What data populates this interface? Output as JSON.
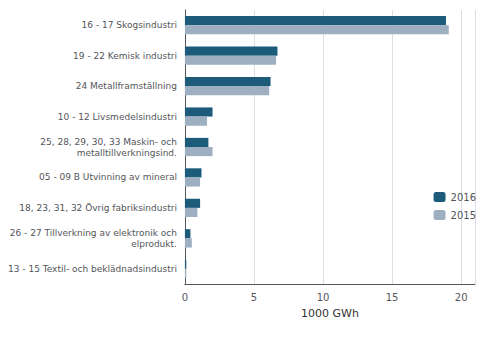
{
  "chart_data": {
    "type": "bar",
    "orientation": "horizontal",
    "categories": [
      "13 - 15 Textil- och beklädnadsindustri",
      "26 - 27 Tillverkning av elektronik och\nelprodukt.",
      "18, 23, 31, 32 Övrig fabriksindustri",
      "05 - 09 B Utvinning av mineral",
      "25, 28, 29, 30, 33 Maskin- och\nmetalltillverkningsind.",
      "10 - 12 Livsmedelsindustri",
      "24 Metallframställning",
      "19 - 22 Kemisk industri",
      "16 - 17 Skogsindustri"
    ],
    "series": [
      {
        "name": "2016",
        "color": "#1c5b7a",
        "values": [
          0.1,
          0.4,
          1.1,
          1.2,
          1.7,
          2.0,
          6.2,
          6.7,
          18.9
        ]
      },
      {
        "name": "2015",
        "color": "#9dafc0",
        "values": [
          0.1,
          0.5,
          0.9,
          1.1,
          2.0,
          1.6,
          6.1,
          6.6,
          19.1
        ]
      }
    ],
    "xlabel": "1000 GWh",
    "xlim": [
      0,
      21
    ],
    "xticks": [
      0,
      5,
      10,
      15,
      20
    ],
    "grid": true,
    "legend": "right"
  }
}
